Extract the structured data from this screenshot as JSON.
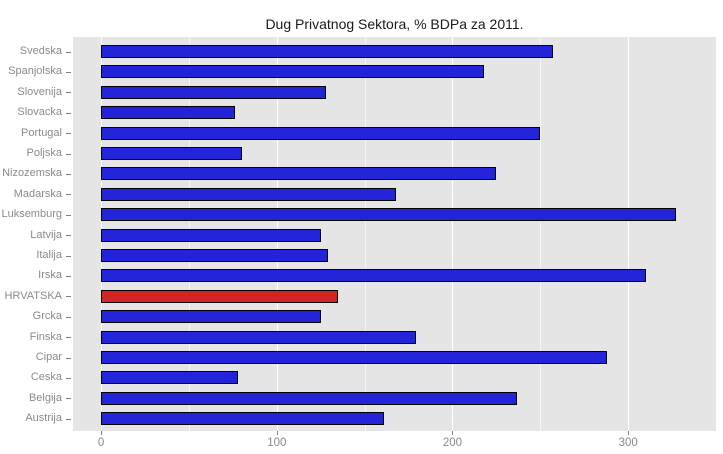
{
  "chart_data": {
    "type": "bar",
    "orientation": "horizontal",
    "title": "Dug Privatnog Sektora, % BDPa za 2011.",
    "categories": [
      "Svedska",
      "Spanjolska",
      "Slovenija",
      "Slovacka",
      "Portugal",
      "Poljska",
      "Nizozemska",
      "Madarska",
      "Luksemburg",
      "Latvija",
      "Italija",
      "Irska",
      "HRVATSKA",
      "Grcka",
      "Finska",
      "Cipar",
      "Ceska",
      "Belgija",
      "Austrija"
    ],
    "values": [
      257,
      218,
      128,
      76,
      250,
      80,
      225,
      168,
      327,
      125,
      129,
      310,
      135,
      125,
      179,
      288,
      78,
      237,
      161
    ],
    "xlabel": "",
    "ylabel": "",
    "xlim": [
      -16,
      350
    ],
    "x_major_ticks": [
      0,
      100,
      200,
      300
    ],
    "x_minor_ticks": [
      50,
      150,
      250,
      350
    ],
    "grid": "on",
    "legend": "none",
    "highlight_category": "HRVATSKA",
    "colors": {
      "bar": "#2323d9",
      "highlight": "#d32424",
      "bar_border": "#000000",
      "panel_background": "#e5e5e5",
      "grid_major": "#ffffff",
      "axis_text": "#8a8a8a",
      "title_text": "#1a1a1a"
    }
  }
}
